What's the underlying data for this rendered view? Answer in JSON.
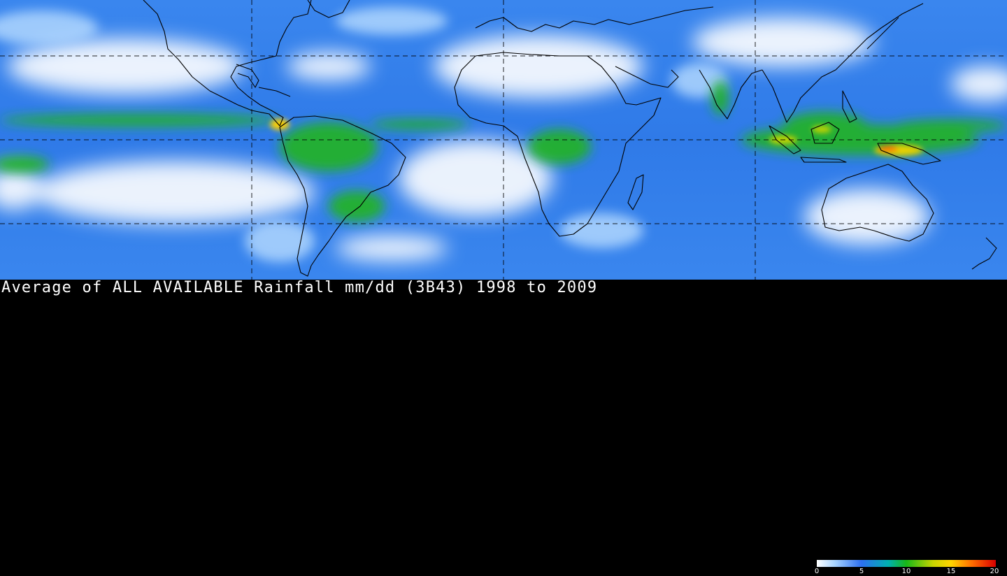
{
  "title": "Average of ALL AVAILABLE Rainfall mm/dd (3B43) 1998 to 2009",
  "colorbar": {
    "ticks": [
      "0",
      "5",
      "10",
      "15",
      "20"
    ],
    "min": 0,
    "max": 20,
    "colors": [
      "#ffffff",
      "#8fc8ff",
      "#2c6ff0",
      "#00a0c0",
      "#18b818",
      "#c8d400",
      "#ffd000",
      "#ff6000",
      "#d80000"
    ]
  },
  "map": {
    "ocean_color": "#2a78e8",
    "dry_color": "#ffffff",
    "wet_color": "#22b422",
    "coastline_color": "#000000",
    "gridline_style": "dashed black"
  }
}
